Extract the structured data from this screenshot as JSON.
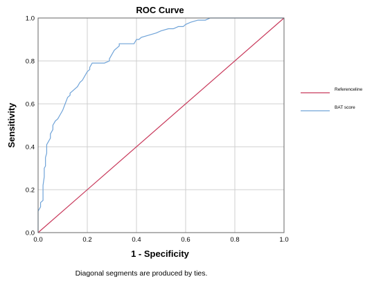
{
  "chart_data": {
    "type": "line",
    "title": "ROC Curve",
    "xlabel": "1 - Specificity",
    "ylabel": "Sensitivity",
    "xlim": [
      0,
      1
    ],
    "ylim": [
      0,
      1
    ],
    "x_ticks": [
      "0.0",
      "0.2",
      "0.4",
      "0.6",
      "0.8",
      "1.0"
    ],
    "y_ticks": [
      "0.0",
      "0.2",
      "0.4",
      "0.6",
      "0.8",
      "1.0"
    ],
    "grid": true,
    "legend_position": "right",
    "footnote": "Diagonal segments are produced by ties.",
    "series": [
      {
        "name": "Referenceline",
        "color": "#c8385a",
        "x": [
          0,
          1
        ],
        "y": [
          0,
          1
        ]
      },
      {
        "name": "BAT score",
        "color": "#6fa3d8",
        "x": [
          0,
          0,
          0.01,
          0.01,
          0.02,
          0.02,
          0.025,
          0.025,
          0.03,
          0.03,
          0.035,
          0.035,
          0.04,
          0.045,
          0.05,
          0.05,
          0.06,
          0.06,
          0.07,
          0.08,
          0.09,
          0.1,
          0.11,
          0.12,
          0.13,
          0.13,
          0.14,
          0.15,
          0.16,
          0.17,
          0.18,
          0.19,
          0.2,
          0.21,
          0.21,
          0.22,
          0.23,
          0.24,
          0.27,
          0.29,
          0.29,
          0.3,
          0.31,
          0.32,
          0.33,
          0.33,
          0.35,
          0.37,
          0.39,
          0.4,
          0.41,
          0.42,
          0.45,
          0.48,
          0.5,
          0.53,
          0.55,
          0.57,
          0.59,
          0.6,
          0.62,
          0.65,
          0.68,
          0.7,
          0.73,
          0.75,
          0.76,
          0.77,
          0.8,
          0.85,
          0.9,
          0.95,
          1.0
        ],
        "y": [
          0,
          0.1,
          0.12,
          0.14,
          0.15,
          0.22,
          0.26,
          0.3,
          0.31,
          0.35,
          0.37,
          0.41,
          0.42,
          0.43,
          0.44,
          0.46,
          0.48,
          0.5,
          0.52,
          0.53,
          0.55,
          0.57,
          0.6,
          0.63,
          0.64,
          0.65,
          0.66,
          0.67,
          0.68,
          0.7,
          0.71,
          0.73,
          0.75,
          0.76,
          0.77,
          0.79,
          0.79,
          0.79,
          0.79,
          0.8,
          0.81,
          0.83,
          0.85,
          0.86,
          0.87,
          0.88,
          0.88,
          0.88,
          0.88,
          0.9,
          0.9,
          0.91,
          0.92,
          0.93,
          0.94,
          0.95,
          0.95,
          0.96,
          0.96,
          0.97,
          0.98,
          0.99,
          0.99,
          1.0,
          1.0,
          1.0,
          1.0,
          1.0,
          1.0,
          1.0,
          1.0,
          1.0,
          1.0
        ]
      }
    ]
  }
}
